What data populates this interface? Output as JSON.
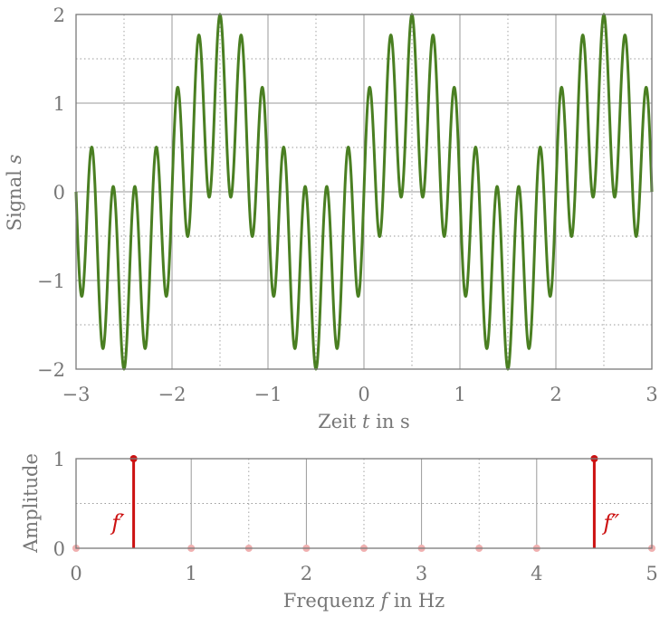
{
  "chart_data": [
    {
      "type": "line",
      "title": "",
      "xlabel": "Zeit t in s",
      "ylabel": "Signal s",
      "xlabel_parts": {
        "pre": "Zeit ",
        "var": "t",
        "post": " in s"
      },
      "ylabel_parts": {
        "pre": "Signal ",
        "var": "s"
      },
      "xlim": [
        -3,
        3
      ],
      "ylim": [
        -2,
        2
      ],
      "xticks": [
        -3,
        -2,
        -1,
        0,
        1,
        2,
        3
      ],
      "xtick_labels": [
        "−3",
        "−2",
        "−1",
        "0",
        "1",
        "2",
        "3"
      ],
      "yticks": [
        -2,
        -1,
        0,
        1,
        2
      ],
      "ytick_labels": [
        "−2",
        "−1",
        "0",
        "1",
        "2"
      ],
      "grid": true,
      "series": [
        {
          "formula": "sin(2*pi*0.5*t) + sin(2*pi*4.5*t)",
          "components": [
            {
              "frequency_hz": 0.5,
              "amplitude": 1
            },
            {
              "frequency_hz": 4.5,
              "amplitude": 1
            }
          ],
          "color": "#4a7f22"
        }
      ]
    },
    {
      "type": "stem",
      "title": "",
      "xlabel": "Frequenz f in Hz",
      "ylabel": "Amplitude",
      "xlabel_parts": {
        "pre": "Frequenz ",
        "var": "f",
        "post": " in Hz"
      },
      "xlim": [
        0,
        5
      ],
      "ylim": [
        0,
        1
      ],
      "xticks": [
        0,
        1,
        2,
        3,
        4,
        5
      ],
      "xtick_labels": [
        "0",
        "1",
        "2",
        "3",
        "4",
        "5"
      ],
      "yticks": [
        0,
        1
      ],
      "ytick_labels": [
        "0",
        "1"
      ],
      "grid": true,
      "x": [
        0,
        0.5,
        1,
        1.5,
        2,
        2.5,
        3,
        3.5,
        4,
        4.5,
        5
      ],
      "values": [
        0,
        1,
        0,
        0,
        0,
        0,
        0,
        0,
        0,
        1,
        0
      ],
      "annotations": [
        {
          "text": "f′",
          "x": 0.5,
          "side": "left"
        },
        {
          "text": "f″",
          "x": 4.5,
          "side": "right"
        }
      ],
      "color": "#cc1111",
      "zero_marker_color": "#f0b0b0"
    }
  ]
}
